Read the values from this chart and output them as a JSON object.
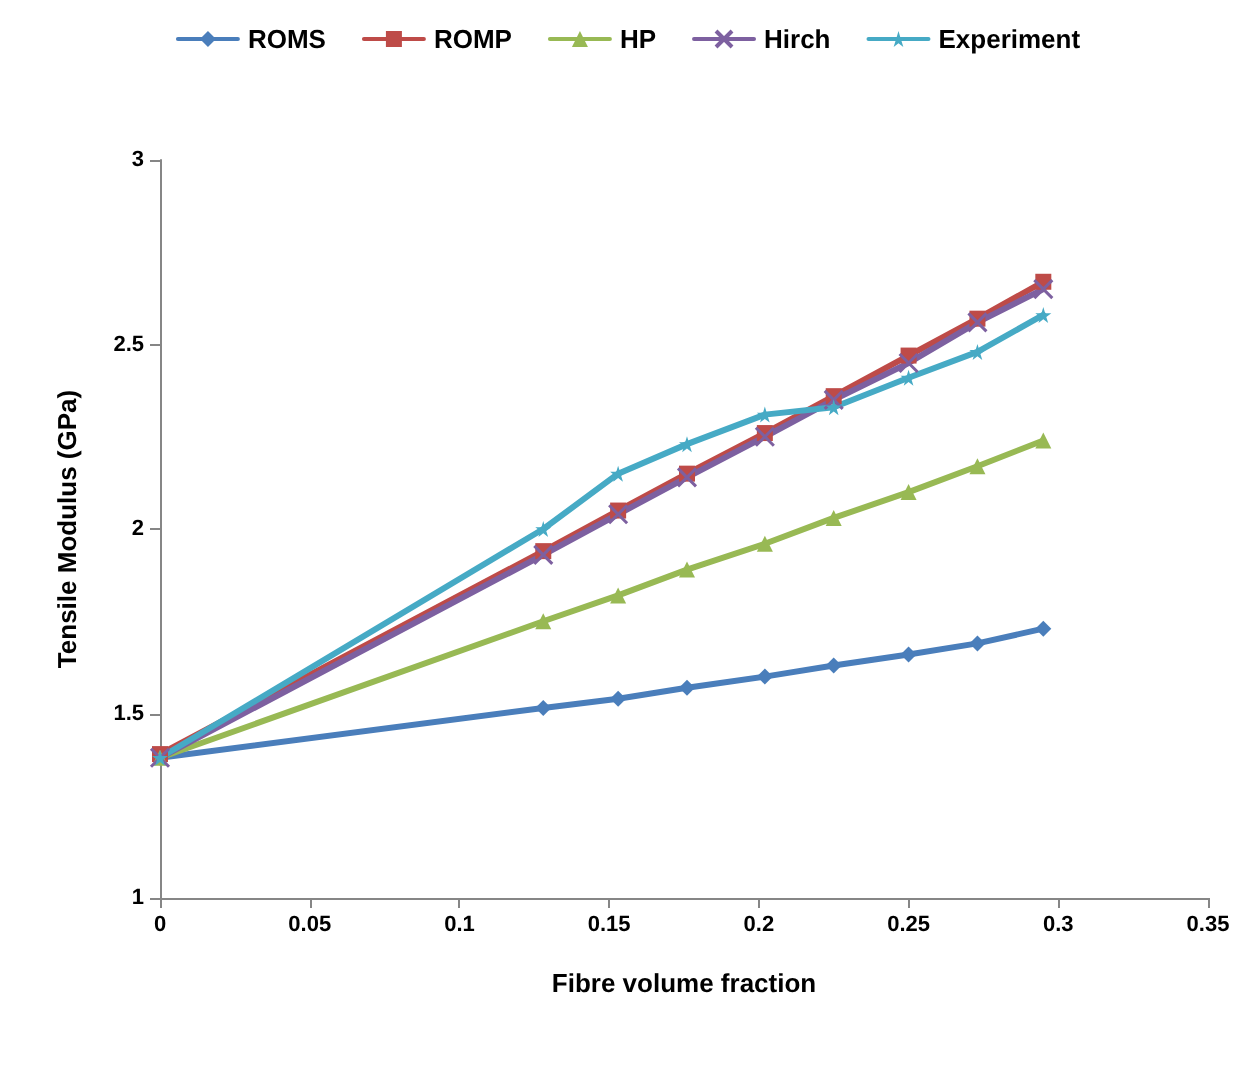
{
  "chart_data": {
    "type": "line",
    "xlabel": "Fibre volume fraction",
    "ylabel": "Tensile Modulus (GPa)",
    "x": [
      0,
      0.128,
      0.153,
      0.176,
      0.202,
      0.225,
      0.25,
      0.273,
      0.295
    ],
    "xlim": [
      0,
      0.35
    ],
    "xticks": [
      0,
      0.05,
      0.1,
      0.15,
      0.2,
      0.25,
      0.3,
      0.35
    ],
    "ylim": [
      1,
      3
    ],
    "yticks": [
      1,
      1.5,
      2,
      2.5,
      3
    ],
    "grid": false,
    "legend": "top",
    "line_style": "solid",
    "series": [
      {
        "name": "ROMS",
        "color": "#4a7ebb",
        "marker": "diamond",
        "values": [
          1.38,
          1.515,
          1.54,
          1.57,
          1.6,
          1.63,
          1.66,
          1.69,
          1.73
        ]
      },
      {
        "name": "ROMP",
        "color": "#be4b48",
        "marker": "square",
        "values": [
          1.39,
          1.94,
          2.05,
          2.15,
          2.26,
          2.36,
          2.47,
          2.57,
          2.67
        ]
      },
      {
        "name": "HP",
        "color": "#98b954",
        "marker": "triangle",
        "values": [
          1.38,
          1.75,
          1.82,
          1.89,
          1.96,
          2.03,
          2.1,
          2.17,
          2.24
        ]
      },
      {
        "name": "Hirch",
        "color": "#7d60a0",
        "marker": "cross",
        "values": [
          1.38,
          1.93,
          2.04,
          2.14,
          2.25,
          2.35,
          2.45,
          2.56,
          2.65
        ]
      },
      {
        "name": "Experiment",
        "color": "#46aac5",
        "marker": "star",
        "values": [
          1.38,
          2.0,
          2.15,
          2.23,
          2.31,
          2.33,
          2.41,
          2.48,
          2.58
        ]
      }
    ]
  }
}
